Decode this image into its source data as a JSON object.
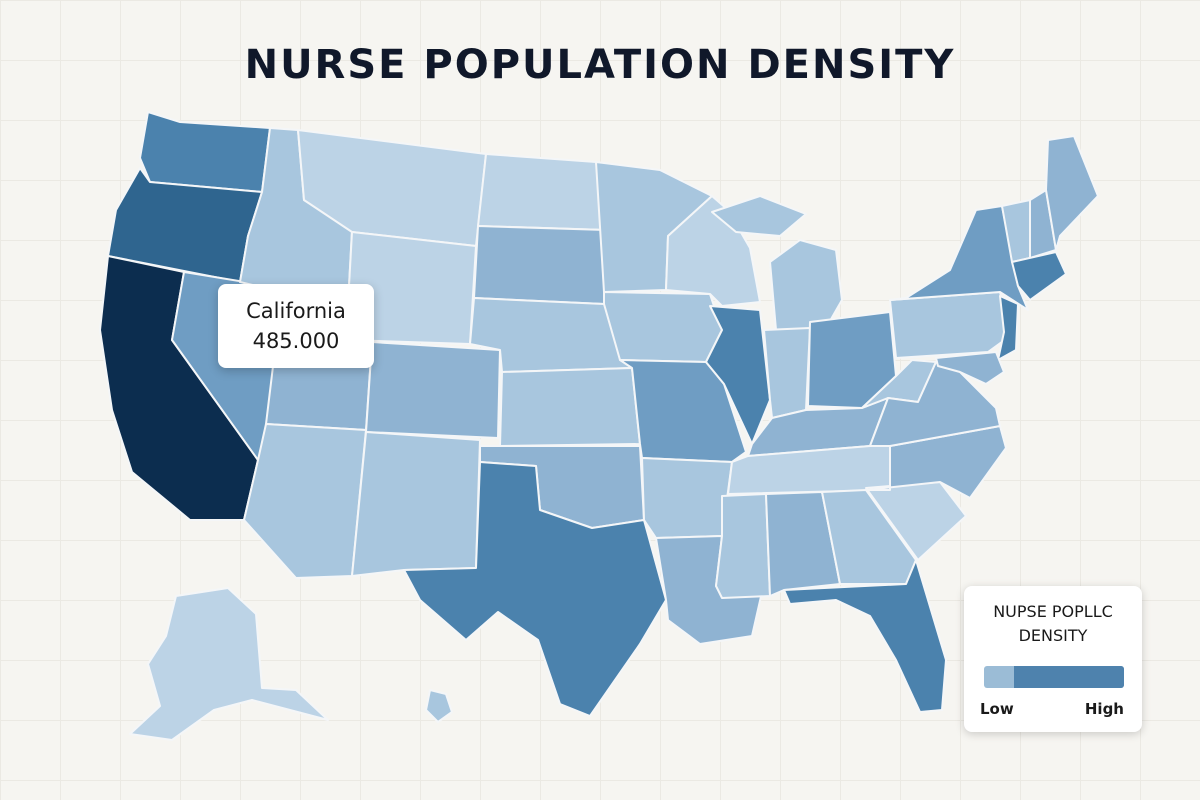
{
  "title": "NURSE POPULATION DENSITY",
  "colors": {
    "darkest": "#0c2d4f",
    "dark": "#2f658f",
    "mid_dark": "#4b82ad",
    "mid": "#6f9dc3",
    "mid_light": "#8fb3d2",
    "light": "#a8c6de",
    "lightest": "#bcd3e6"
  },
  "tooltip": {
    "state": "California",
    "value": "485.000"
  },
  "legend": {
    "title_line1": "NUPSE POPLLC",
    "title_line2": "DENSITY",
    "low_label": "Low",
    "high_label": "High",
    "low_color": "#9bbcd6",
    "high_color": "#4e82ad"
  }
}
